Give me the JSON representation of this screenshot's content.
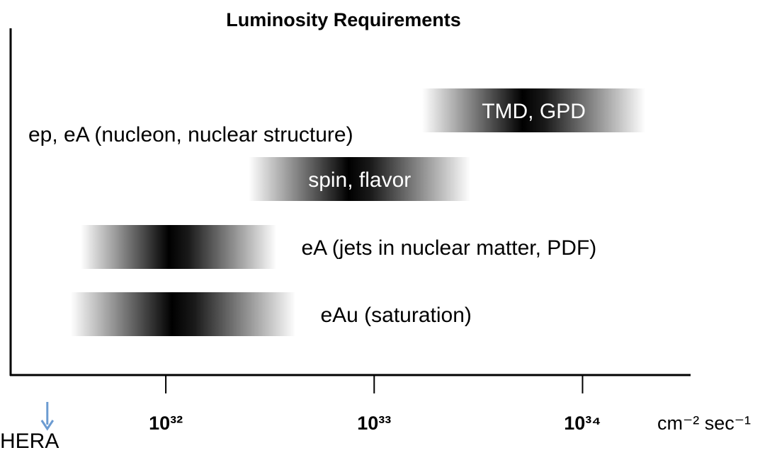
{
  "chart_data": {
    "type": "range",
    "title": "Luminosity Requirements",
    "x_label": "cm⁻² sec⁻¹",
    "x_scale": "log",
    "xlim": [
      1.8e+31,
      3.3e+34
    ],
    "xticks": [
      {
        "value": 1e+32,
        "label": "10³²"
      },
      {
        "value": 1e+33,
        "label": "10³³"
      },
      {
        "value": 1e+34,
        "label": "10³⁴"
      }
    ],
    "color": "#4a86d0",
    "group_label": "ep, eA (nucleon, nuclear structure)",
    "bars": [
      {
        "label": "TMD, GPD",
        "low": 1.7e+33,
        "high": 2e+34,
        "label_position": "inside"
      },
      {
        "label": "spin, flavor",
        "low": 2.5e+32,
        "high": 2.9e+33,
        "label_position": "inside"
      },
      {
        "label": "eA (jets in nuclear matter, PDF)",
        "low": 3.9e+31,
        "high": 3.4e+32,
        "label_position": "right"
      },
      {
        "label": "eAu (saturation)",
        "low": 3.5e+31,
        "high": 4.2e+32,
        "label_position": "right"
      }
    ],
    "marker": {
      "label": "HERA",
      "value": 2.7e+31
    }
  }
}
